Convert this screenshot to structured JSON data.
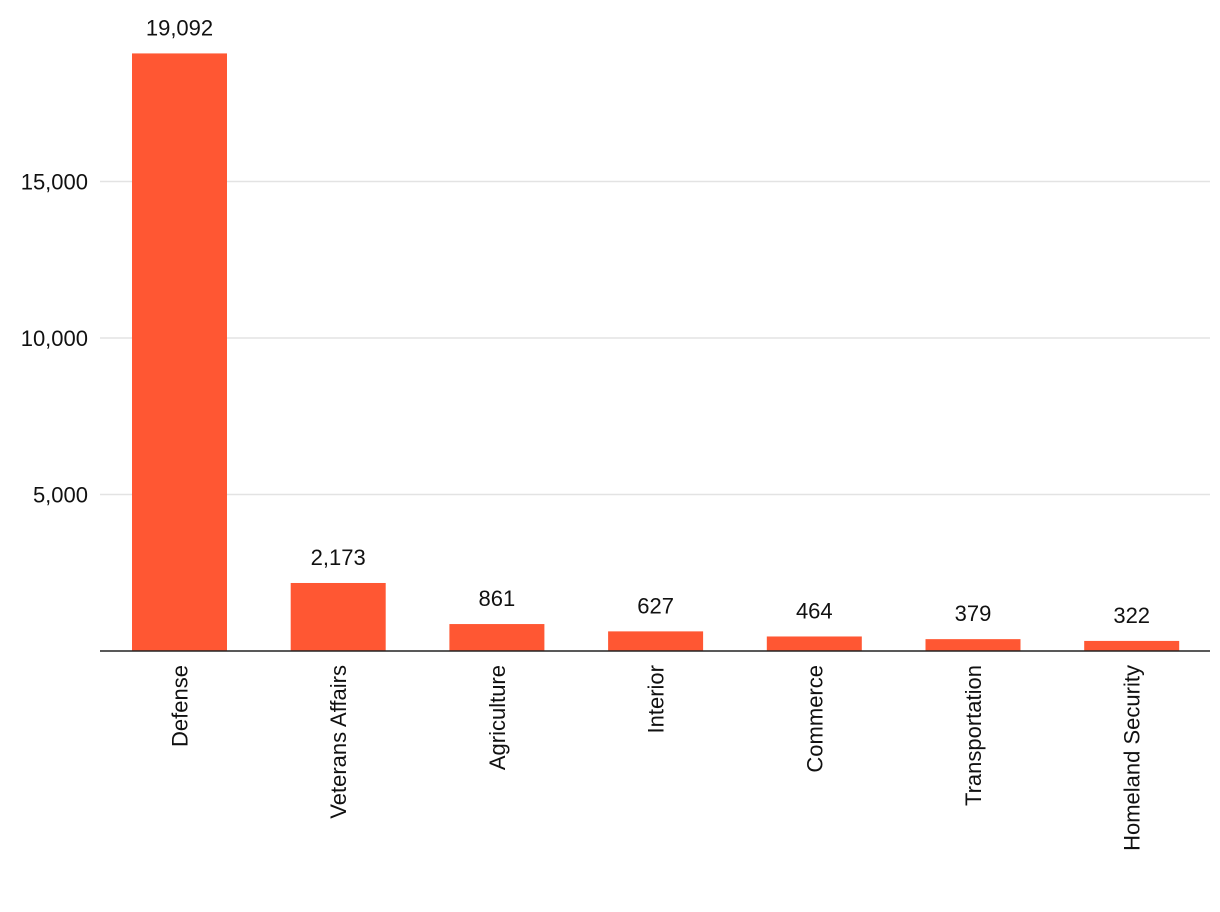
{
  "chart_data": {
    "type": "bar",
    "title": "",
    "xlabel": "",
    "ylabel": "",
    "categories": [
      "Defense",
      "Veterans Affairs",
      "Agriculture",
      "Interior",
      "Commerce",
      "Transportation",
      "Homeland Security"
    ],
    "values": [
      19092,
      2173,
      861,
      627,
      464,
      379,
      322
    ],
    "value_labels": [
      "19,092",
      "2,173",
      "861",
      "627",
      "464",
      "379",
      "322"
    ],
    "ylim": [
      0,
      20000
    ],
    "y_ticks": [
      5000,
      10000,
      15000
    ],
    "y_tick_labels": [
      "5,000",
      "10,000",
      "15,000"
    ],
    "grid": true,
    "legend": "none",
    "category_label_rotation": "vertical",
    "colors": {
      "bar": "#ff5733",
      "grid": "#e3e3e3",
      "axis": "#222222",
      "text": "#111111"
    }
  }
}
